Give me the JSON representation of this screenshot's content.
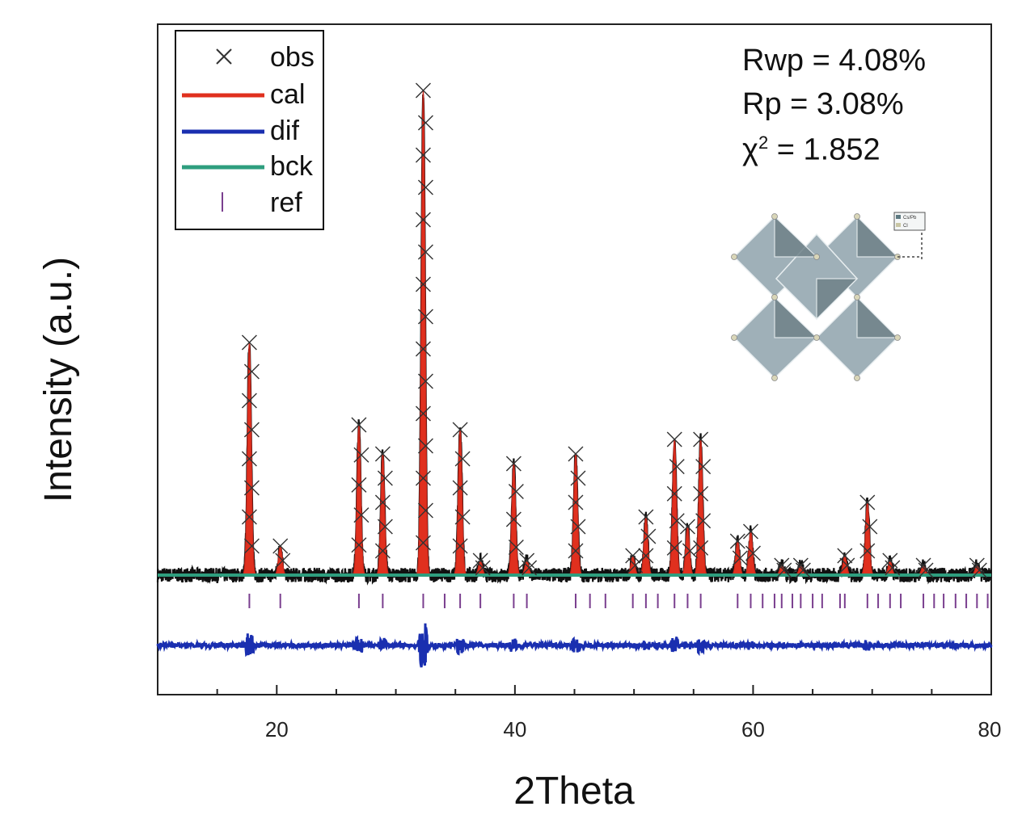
{
  "chart_data": {
    "type": "line",
    "title": "",
    "xlabel": "2Theta",
    "ylabel": "Intensity (a.u.)",
    "xlim": [
      10,
      80
    ],
    "xticks": [
      20,
      40,
      60,
      80
    ],
    "ylim": [
      -0.2,
      1.03
    ],
    "yticks_shown": false,
    "grid": false,
    "legend": {
      "placement": "top-left",
      "entries": [
        {
          "label": "obs",
          "marker": "x",
          "color": "#333333"
        },
        {
          "label": "cal",
          "marker": "line",
          "color": "#e0301e"
        },
        {
          "label": "dif",
          "marker": "line",
          "color": "#1a2fb0"
        },
        {
          "label": "bck",
          "marker": "line",
          "color": "#2e9e7e"
        },
        {
          "label": "ref",
          "marker": "tick",
          "color": "#7a3f8f"
        }
      ]
    },
    "background_level": 0.0,
    "difference_offset": -0.12,
    "reference_row_level": -0.04,
    "peaks": [
      {
        "x": 17.7,
        "y": 0.48
      },
      {
        "x": 20.3,
        "y": 0.06
      },
      {
        "x": 26.9,
        "y": 0.31
      },
      {
        "x": 28.9,
        "y": 0.25
      },
      {
        "x": 32.3,
        "y": 1.0
      },
      {
        "x": 35.4,
        "y": 0.3
      },
      {
        "x": 37.1,
        "y": 0.03
      },
      {
        "x": 39.9,
        "y": 0.23
      },
      {
        "x": 41.0,
        "y": 0.03
      },
      {
        "x": 45.1,
        "y": 0.25
      },
      {
        "x": 49.9,
        "y": 0.04
      },
      {
        "x": 51.0,
        "y": 0.12
      },
      {
        "x": 53.4,
        "y": 0.28
      },
      {
        "x": 54.5,
        "y": 0.1
      },
      {
        "x": 55.6,
        "y": 0.28
      },
      {
        "x": 58.7,
        "y": 0.07
      },
      {
        "x": 59.8,
        "y": 0.09
      },
      {
        "x": 62.4,
        "y": 0.02
      },
      {
        "x": 64.0,
        "y": 0.02
      },
      {
        "x": 67.7,
        "y": 0.04
      },
      {
        "x": 69.6,
        "y": 0.15
      },
      {
        "x": 71.5,
        "y": 0.03
      },
      {
        "x": 74.3,
        "y": 0.02
      },
      {
        "x": 78.8,
        "y": 0.02
      }
    ],
    "reference_positions": [
      17.7,
      20.3,
      26.9,
      28.9,
      32.3,
      34.1,
      35.4,
      37.1,
      39.9,
      41.0,
      45.1,
      46.3,
      47.6,
      49.9,
      51.0,
      52.0,
      53.4,
      54.5,
      55.6,
      58.7,
      59.8,
      60.8,
      61.8,
      62.4,
      63.3,
      64.0,
      65.0,
      65.8,
      67.3,
      67.7,
      69.6,
      70.5,
      71.5,
      72.4,
      74.3,
      75.2,
      76.0,
      77.0,
      77.9,
      78.8,
      79.7
    ]
  },
  "annotations": {
    "rwp": "Rwp = 4.08%",
    "rp": "Rp = 3.08%",
    "chi_symbol": "χ",
    "chi_exp": "2",
    "chi_value": "=  1.852"
  },
  "inset": {
    "description_icon": "crystal-structure-icon",
    "legend_labels": [
      "Cs/Pb",
      "Cl"
    ]
  }
}
